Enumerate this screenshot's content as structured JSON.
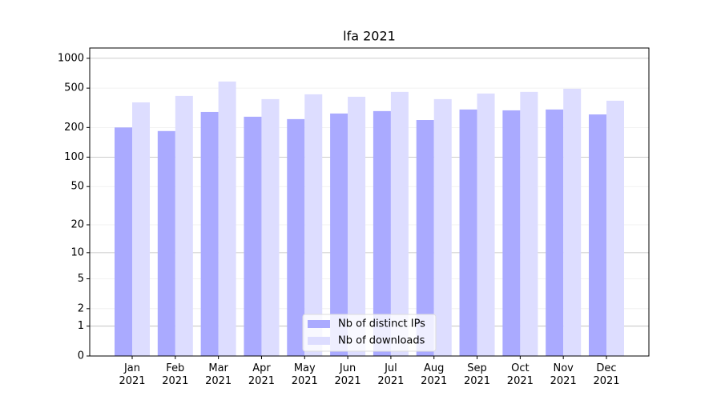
{
  "chart_data": {
    "type": "bar",
    "title": "lfa 2021",
    "categories": [
      "Jan\n2021",
      "Feb\n2021",
      "Mar\n2021",
      "Apr\n2021",
      "May\n2021",
      "Jun\n2021",
      "Jul\n2021",
      "Aug\n2021",
      "Sep\n2021",
      "Oct\n2021",
      "Nov\n2021",
      "Dec\n2021"
    ],
    "series": [
      {
        "name": "Nb of distinct IPs",
        "color": "#aaaaff",
        "values": [
          200,
          184,
          287,
          257,
          243,
          277,
          293,
          238,
          304,
          298,
          304,
          271
        ]
      },
      {
        "name": "Nb of downloads",
        "color": "#ddddff",
        "values": [
          359,
          417,
          583,
          387,
          433,
          409,
          458,
          387,
          441,
          458,
          493,
          373
        ]
      }
    ],
    "yscale": "log1p",
    "ylim": [
      0,
      1270
    ],
    "yticks": [
      0,
      1,
      2,
      5,
      10,
      20,
      50,
      100,
      200,
      500,
      1000
    ],
    "grid": true,
    "legend": "lower center"
  }
}
